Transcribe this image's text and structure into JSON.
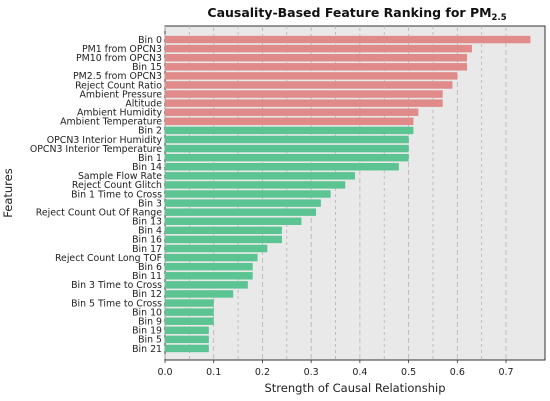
{
  "chart_data": {
    "type": "bar",
    "orientation": "horizontal",
    "title_main": "Causality-Based Feature Ranking for PM",
    "title_subscript": "2.5",
    "xlabel": "Strength of Causal Relationship",
    "ylabel": "Features",
    "xlim": [
      0,
      0.78
    ],
    "xticks": [
      "0.0",
      "0.1",
      "0.2",
      "0.3",
      "0.4",
      "0.5",
      "0.6",
      "0.7"
    ],
    "grid": true,
    "colors": {
      "top": "#e08a8a",
      "rest": "#5cc493",
      "background": "#e9e9e9"
    },
    "categories": [
      "Bin 0",
      "PM1 from OPCN3",
      "PM10 from OPCN3",
      "Bin 15",
      "PM2.5 from OPCN3",
      "Reject Count Ratio",
      "Ambient Pressure",
      "Altitude",
      "Ambient Humidity",
      "Ambient Temperature",
      "Bin 2",
      "OPCN3 Interior Humidity",
      "OPCN3 Interior Temperature",
      "Bin 1",
      "Bin 14",
      "Sample Flow Rate",
      "Reject Count Glitch",
      "Bin 1 Time to Cross",
      "Bin 3",
      "Reject Count Out Of Range",
      "Bin 13",
      "Bin 4",
      "Bin 16",
      "Bin 17",
      "Reject Count Long TOF",
      "Bin 6",
      "Bin 11",
      "Bin 3 Time to Cross",
      "Bin 12",
      "Bin 5 Time to Cross",
      "Bin 10",
      "Bin 9",
      "Bin 19",
      "Bin 5",
      "Bin 21"
    ],
    "values": [
      0.75,
      0.63,
      0.62,
      0.62,
      0.6,
      0.59,
      0.57,
      0.57,
      0.52,
      0.51,
      0.51,
      0.5,
      0.5,
      0.5,
      0.48,
      0.39,
      0.37,
      0.34,
      0.32,
      0.31,
      0.28,
      0.24,
      0.24,
      0.21,
      0.19,
      0.18,
      0.18,
      0.17,
      0.14,
      0.1,
      0.1,
      0.1,
      0.09,
      0.09,
      0.09
    ],
    "highlight_top_n": 10
  }
}
